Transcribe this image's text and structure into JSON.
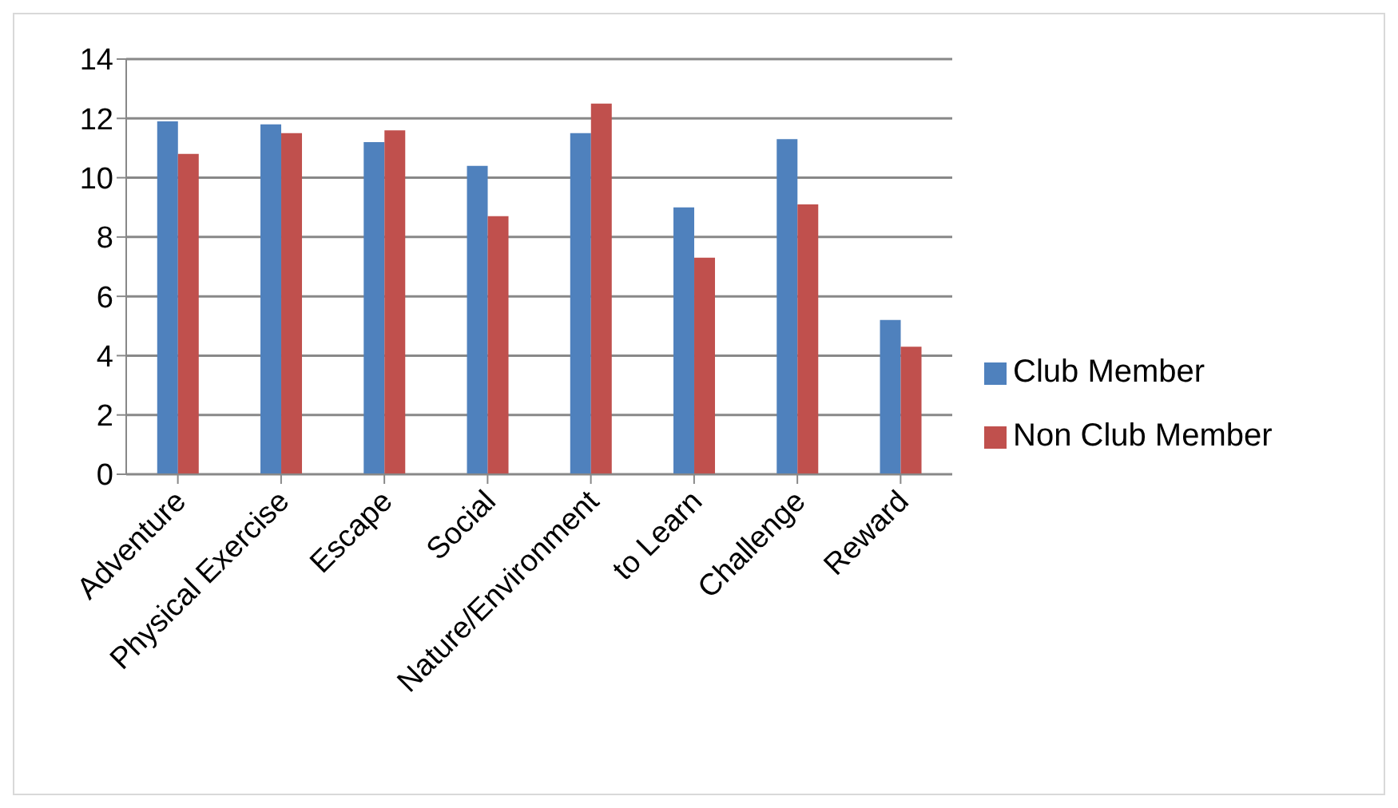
{
  "chart_data": {
    "type": "bar",
    "categories": [
      "Adventure",
      "Physical Exercise",
      "Escape",
      "Social",
      "Nature/Environment",
      "to Learn",
      "Challenge",
      "Reward"
    ],
    "series": [
      {
        "name": "Club Member",
        "color": "#4f81bd",
        "values": [
          11.9,
          11.8,
          11.2,
          10.4,
          11.5,
          9.0,
          11.3,
          5.2
        ]
      },
      {
        "name": "Non Club Member",
        "color": "#c0504d",
        "values": [
          10.8,
          11.5,
          11.6,
          8.7,
          12.5,
          7.3,
          9.1,
          4.3
        ]
      }
    ],
    "ylim": [
      0,
      14
    ],
    "yticks": [
      0,
      2,
      4,
      6,
      8,
      10,
      12,
      14
    ],
    "grid": "y",
    "legend": "right"
  }
}
